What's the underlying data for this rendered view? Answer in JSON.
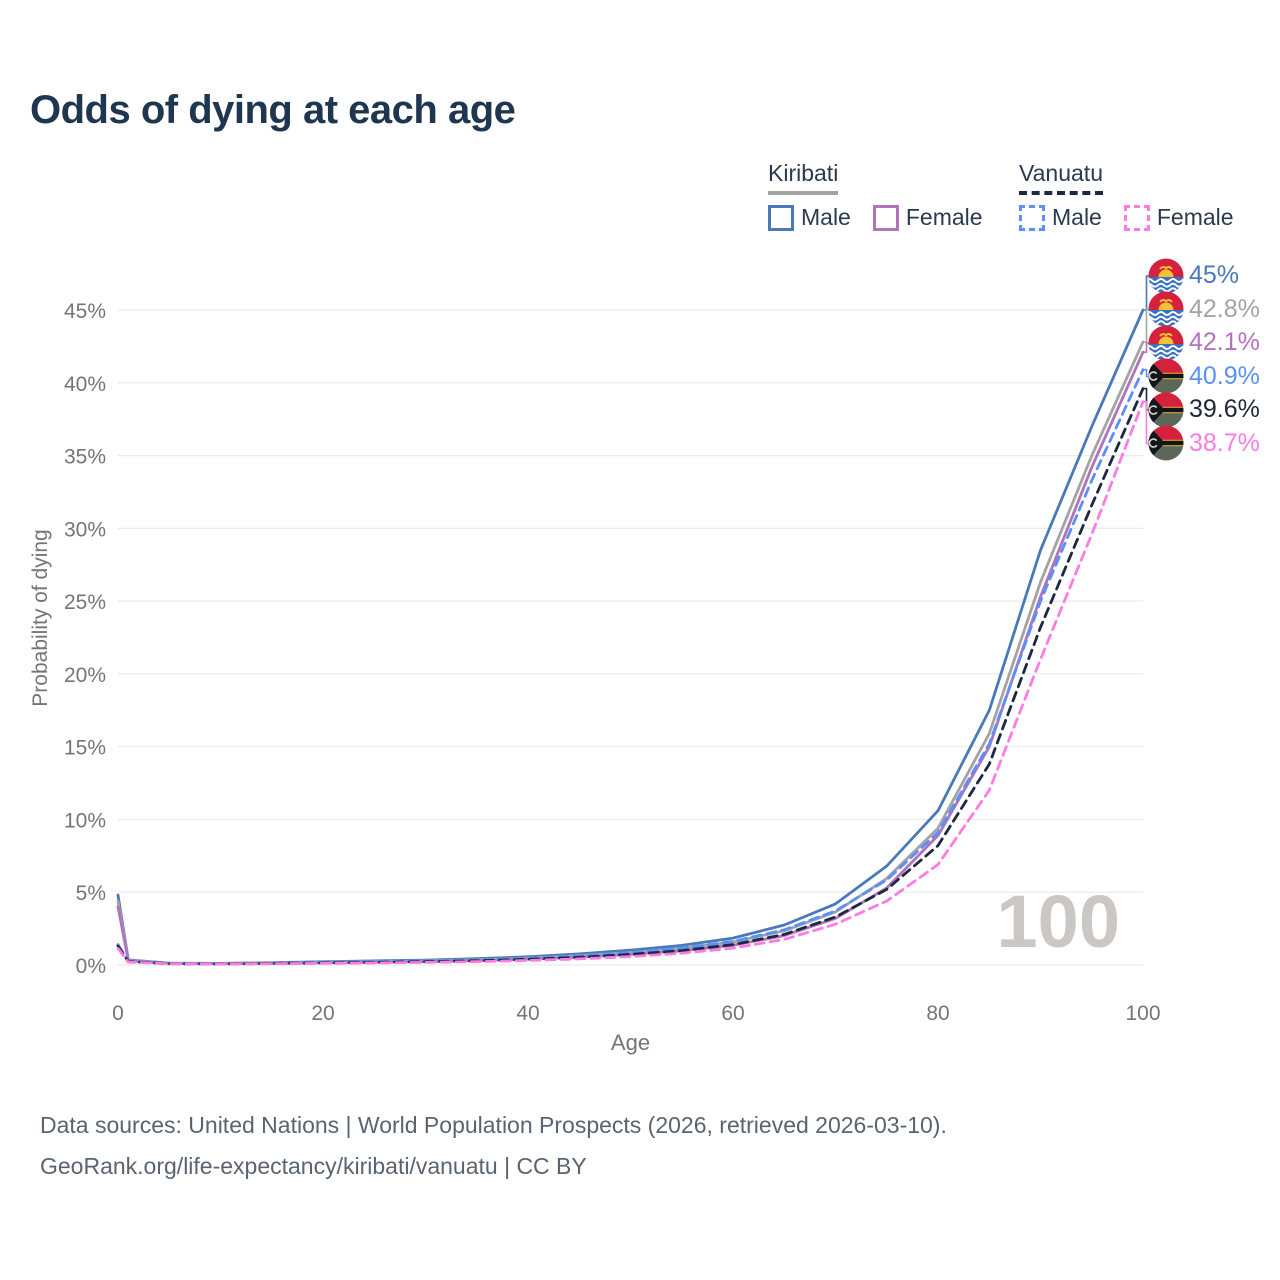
{
  "title": "Odds of dying at each age",
  "legend": {
    "kiribati": {
      "title": "Kiribati",
      "male": "Male",
      "female": "Female"
    },
    "vanuatu": {
      "title": "Vanuatu",
      "male": "Male",
      "female": "Female"
    }
  },
  "end_labels": [
    {
      "label": "45%",
      "color": "#4a79b8",
      "flag": "kiribati"
    },
    {
      "label": "42.8%",
      "color": "#a3a3a3",
      "flag": "kiribati"
    },
    {
      "label": "42.1%",
      "color": "#b173bd",
      "flag": "kiribati"
    },
    {
      "label": "40.9%",
      "color": "#5b8ff9",
      "flag": "vanuatu"
    },
    {
      "label": "39.6%",
      "color": "#1f2733",
      "flag": "vanuatu"
    },
    {
      "label": "38.7%",
      "color": "#fd7ce4",
      "flag": "vanuatu"
    }
  ],
  "footer": {
    "line1": "Data sources: United Nations | World Population Prospects (2026, retrieved 2026-03-10).",
    "line2": "GeoRank.org/life-expectancy/kiribati/vanuatu | CC BY"
  },
  "chart_data": {
    "type": "line",
    "title": "Odds of dying at each age",
    "xlabel": "Age",
    "ylabel": "Probability of dying",
    "xlim": [
      0,
      100
    ],
    "ylim": [
      0,
      47
    ],
    "x_ticks": [
      0,
      20,
      40,
      60,
      80,
      100
    ],
    "y_ticks": [
      0,
      5,
      10,
      15,
      20,
      25,
      30,
      35,
      40,
      45
    ],
    "y_tick_suffix": "%",
    "grid": "horizontal",
    "legend_position": "top-right",
    "watermark": "100",
    "x": [
      0,
      1,
      5,
      10,
      15,
      20,
      25,
      30,
      35,
      40,
      45,
      50,
      55,
      60,
      65,
      70,
      75,
      80,
      85,
      90,
      95,
      100
    ],
    "series": [
      {
        "id": "kiribati-male",
        "name": "Kiribati Male",
        "color": "#4a79b8",
        "dash": "",
        "end_label": "45%",
        "values": [
          4.8,
          0.35,
          0.13,
          0.11,
          0.16,
          0.22,
          0.28,
          0.34,
          0.43,
          0.56,
          0.76,
          1.02,
          1.35,
          1.85,
          2.75,
          4.2,
          6.8,
          10.6,
          17.5,
          28.5,
          37.0,
          45.0
        ]
      },
      {
        "id": "kiribati-total",
        "name": "Kiribati Total",
        "color": "#a3a3a3",
        "dash": "",
        "end_label": "42.8%",
        "values": [
          4.4,
          0.32,
          0.12,
          0.1,
          0.14,
          0.18,
          0.23,
          0.28,
          0.36,
          0.47,
          0.64,
          0.86,
          1.15,
          1.58,
          2.35,
          3.65,
          5.95,
          9.4,
          15.9,
          26.3,
          35.0,
          42.8
        ]
      },
      {
        "id": "kiribati-female",
        "name": "Kiribati Female",
        "color": "#b173bd",
        "dash": "",
        "end_label": "42.1%",
        "values": [
          4.0,
          0.3,
          0.11,
          0.09,
          0.12,
          0.15,
          0.19,
          0.23,
          0.3,
          0.4,
          0.54,
          0.73,
          0.97,
          1.36,
          2.02,
          3.2,
          5.3,
          8.9,
          15.0,
          25.3,
          34.2,
          42.1
        ]
      },
      {
        "id": "vanuatu-male",
        "name": "Vanuatu Male",
        "color": "#5b8ff9",
        "dash": "9 6",
        "end_label": "40.9%",
        "values": [
          1.4,
          0.26,
          0.1,
          0.08,
          0.12,
          0.17,
          0.22,
          0.27,
          0.34,
          0.46,
          0.63,
          0.86,
          1.17,
          1.62,
          2.42,
          3.72,
          5.85,
          9.1,
          15.2,
          25.0,
          33.3,
          40.9
        ]
      },
      {
        "id": "vanuatu-total",
        "name": "Vanuatu Total",
        "color": "#1c2940",
        "dash": "9 6",
        "end_label": "39.6%",
        "values": [
          1.3,
          0.23,
          0.09,
          0.07,
          0.1,
          0.14,
          0.18,
          0.23,
          0.29,
          0.39,
          0.53,
          0.73,
          0.99,
          1.4,
          2.1,
          3.3,
          5.2,
          8.2,
          13.8,
          23.2,
          31.6,
          39.6
        ]
      },
      {
        "id": "vanuatu-female",
        "name": "Vanuatu Female",
        "color": "#fd7ce4",
        "dash": "9 6",
        "end_label": "38.7%",
        "values": [
          1.15,
          0.2,
          0.08,
          0.06,
          0.08,
          0.11,
          0.14,
          0.18,
          0.23,
          0.31,
          0.42,
          0.58,
          0.81,
          1.16,
          1.76,
          2.8,
          4.4,
          6.9,
          12.0,
          21.0,
          29.6,
          38.7
        ]
      }
    ]
  }
}
